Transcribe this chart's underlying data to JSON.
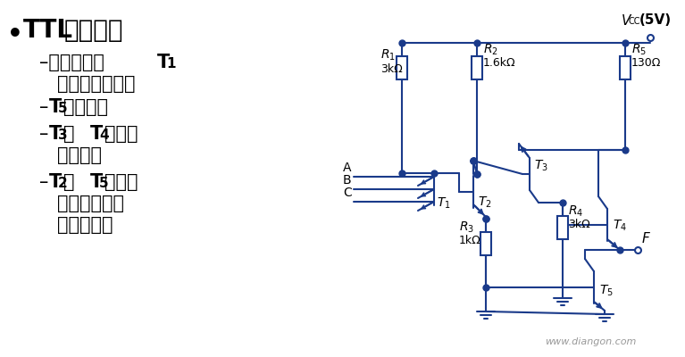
{
  "bg_color": "#ffffff",
  "circuit_color": "#1a3a8a",
  "lw": 1.5,
  "fig_w": 7.67,
  "fig_h": 4.0,
  "dpi": 100,
  "watermark": "www.diangon.com",
  "vcc_text": "(5V)",
  "R1_val": "3kΩ",
  "R2_val": "1.6kΩ",
  "R3_val": "1kΩ",
  "R4_val": "3kΩ",
  "R5_val": "130Ω"
}
